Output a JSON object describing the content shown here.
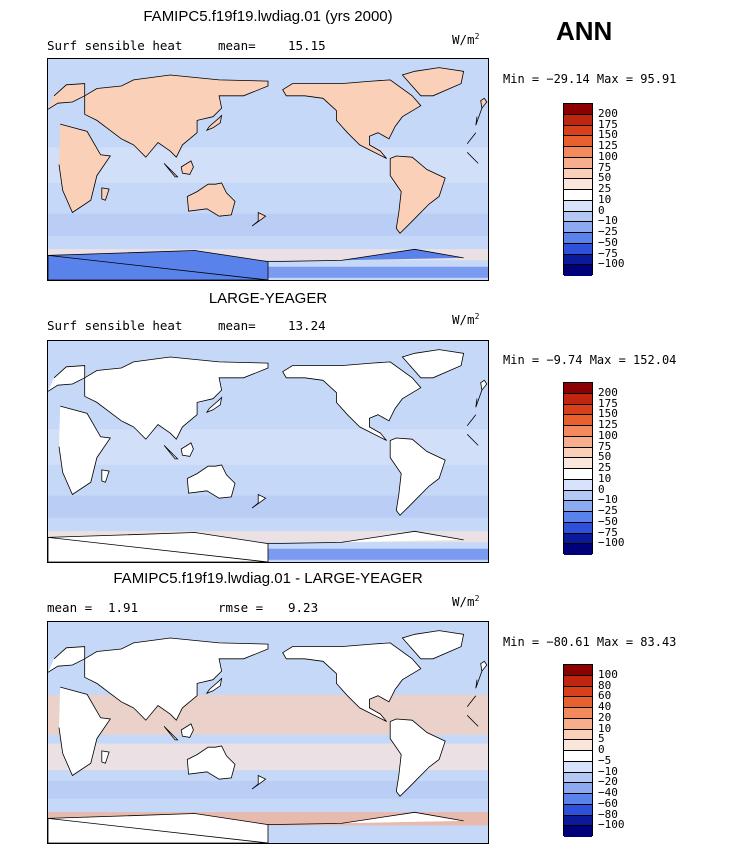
{
  "season": "ANN",
  "panels": [
    {
      "title": "FAMIPC5.f19f19.lwdiag.01 (yrs 2000)",
      "left_label": "Surf sensible heat",
      "stat_label": "mean=",
      "stat_value": "15.15",
      "units_base": "W/m",
      "units_exp": "2",
      "minmax": "Min = −29.14 Max =  95.91",
      "ocean_color": "#c6d8f7",
      "land_color": "#ffffff",
      "levels": [
        "200",
        "175",
        "150",
        "125",
        "100",
        "75",
        "50",
        "25",
        "10",
        "0",
        "−10",
        "−25",
        "−50",
        "−75",
        "−100"
      ],
      "colors": [
        "#8b0000",
        "#c0250f",
        "#d8401c",
        "#e8602e",
        "#f28a5e",
        "#f6ae8d",
        "#fad0b8",
        "#fbe6dc",
        "#ffffff",
        "#d7e3fa",
        "#b3c9f4",
        "#8caaf0",
        "#5a82eb",
        "#2e50da",
        "#0a1a9a",
        "#00007a"
      ]
    },
    {
      "title": "LARGE-YEAGER",
      "left_label": "Surf sensible heat",
      "stat_label": "mean=",
      "stat_value": "13.24",
      "units_base": "W/m",
      "units_exp": "2",
      "minmax": "Min =  −9.74 Max = 152.04",
      "ocean_color": "#c6d8f7",
      "land_color": "#ffffff",
      "levels": [
        "200",
        "175",
        "150",
        "125",
        "100",
        "75",
        "50",
        "25",
        "10",
        "0",
        "−10",
        "−25",
        "−50",
        "−75",
        "−100"
      ],
      "colors": [
        "#8b0000",
        "#c0250f",
        "#d8401c",
        "#e8602e",
        "#f28a5e",
        "#f6ae8d",
        "#fad0b8",
        "#fbe6dc",
        "#ffffff",
        "#d7e3fa",
        "#b3c9f4",
        "#8caaf0",
        "#5a82eb",
        "#2e50da",
        "#0a1a9a",
        "#00007a"
      ]
    },
    {
      "title": "FAMIPC5.f19f19.lwdiag.01 - LARGE-YEAGER",
      "left_label": "mean =",
      "left_value": "1.91",
      "stat_label": "rmse =",
      "stat_value": "9.23",
      "units_base": "W/m",
      "units_exp": "2",
      "minmax": "Min = −80.61 Max =  83.43",
      "ocean_color": "#c6d8f7",
      "land_color": "#ffffff",
      "levels": [
        "100",
        "80",
        "60",
        "40",
        "20",
        "10",
        "5",
        "0",
        "−5",
        "−10",
        "−20",
        "−40",
        "−60",
        "−80",
        "−100"
      ],
      "colors": [
        "#8b0000",
        "#c0250f",
        "#d8401c",
        "#e8602e",
        "#f28a5e",
        "#f6ae8d",
        "#fad0b8",
        "#fbe6dc",
        "#ffffff",
        "#d7e3fa",
        "#b3c9f4",
        "#8caaf0",
        "#5a82eb",
        "#2e50da",
        "#0a1a9a",
        "#00007a"
      ]
    }
  ]
}
